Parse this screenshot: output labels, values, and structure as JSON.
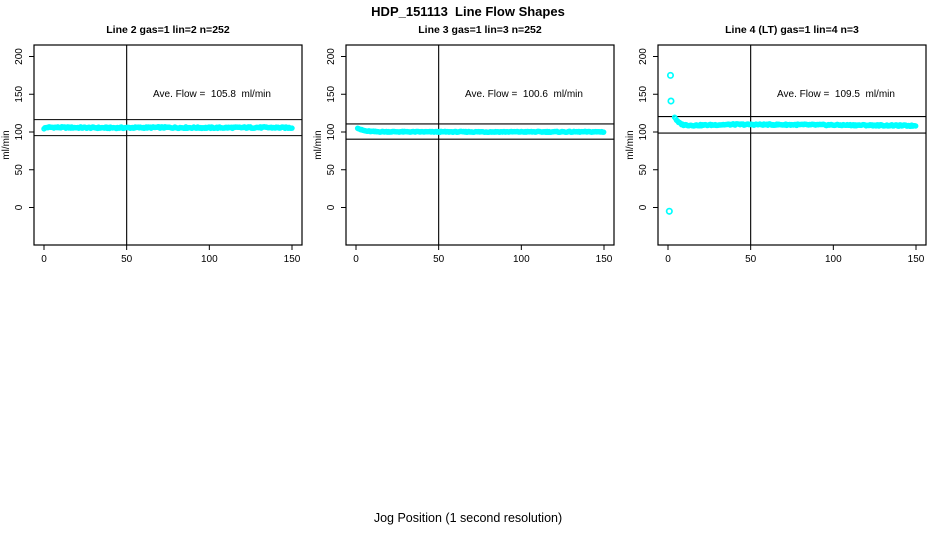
{
  "chart_data": {
    "type": "scatter",
    "title": "HDP_151113  Line Flow Shapes",
    "xlabel": "Jog Position (1 second resolution)",
    "ylabel": "ml/min",
    "x_ticks": [
      0,
      50,
      100,
      150
    ],
    "y_ticks": [
      0,
      50,
      100,
      150,
      200
    ],
    "xlim": [
      0,
      150
    ],
    "ylim": [
      0,
      200
    ],
    "grid": "off",
    "legend": "none",
    "point_color": "#00FFFF",
    "axis_color": "#000000",
    "panels": [
      {
        "title": "Line 2 gas=1 lin=2 n=252",
        "annotation": "Ave. Flow =  105.8  ml/min",
        "ave_flow": 105.8,
        "n": 252,
        "ylabel": "ml/min",
        "vline_x": 50,
        "ref_lines": [
          116.4,
          95.2
        ],
        "series": {
          "x_start": 0,
          "x_end": 150,
          "step": 0.6,
          "noise": 1.0,
          "keypoints": [
            [
              0,
              104.8
            ],
            [
              2,
              106.2
            ],
            [
              15,
              105.9
            ],
            [
              40,
              105.5
            ],
            [
              70,
              106.0
            ],
            [
              100,
              105.6
            ],
            [
              130,
              106.0
            ],
            [
              150,
              105.6
            ]
          ]
        },
        "outliers": []
      },
      {
        "title": "Line 3 gas=1 lin=3 n=252",
        "annotation": "Ave. Flow =  100.6  ml/min",
        "ave_flow": 100.6,
        "n": 252,
        "ylabel": "ml/min",
        "vline_x": 50,
        "ref_lines": [
          110.7,
          90.5
        ],
        "series": {
          "x_start": 1,
          "x_end": 150,
          "step": 0.6,
          "noise": 0.6,
          "keypoints": [
            [
              1,
              105.5
            ],
            [
              3,
              103.0
            ],
            [
              6,
              101.2
            ],
            [
              12,
              100.4
            ],
            [
              40,
              100.2
            ],
            [
              150,
              100.2
            ]
          ]
        },
        "outliers": []
      },
      {
        "title": "Line 4 (LT) gas=1 lin=4 n=3",
        "annotation": "Ave. Flow =  109.5  ml/min",
        "ave_flow": 109.5,
        "n": 3,
        "ylabel": "ml/min",
        "vline_x": 50,
        "ref_lines": [
          120.5,
          98.6
        ],
        "series": {
          "x_start": 4,
          "x_end": 150,
          "step": 0.6,
          "noise": 0.9,
          "keypoints": [
            [
              4,
              120.0
            ],
            [
              6,
              113.0
            ],
            [
              9,
              109.5
            ],
            [
              15,
              108.8
            ],
            [
              40,
              110.0
            ],
            [
              80,
              109.6
            ],
            [
              120,
              109.0
            ],
            [
              150,
              108.3
            ]
          ]
        },
        "outliers": [
          [
            1.5,
            175
          ],
          [
            1.8,
            141
          ],
          [
            0.8,
            -5
          ]
        ]
      }
    ]
  }
}
